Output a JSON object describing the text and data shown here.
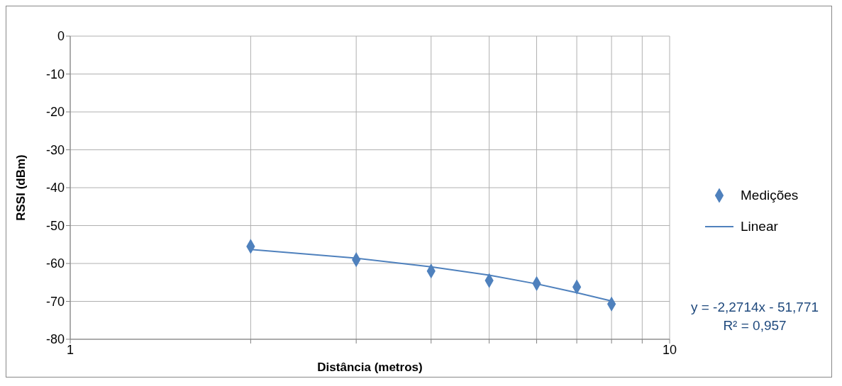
{
  "chart_data": {
    "type": "scatter",
    "xlabel": "Distância (metros)",
    "ylabel": "RSSI (dBm)",
    "log": "x",
    "xlim": [
      1,
      10
    ],
    "xticks": [
      1,
      {
        "value": 2,
        "label": null
      },
      {
        "value": 3,
        "label": null
      },
      {
        "value": 4,
        "label": null
      },
      {
        "value": 5,
        "label": null
      },
      {
        "value": 6,
        "label": null
      },
      {
        "value": 7,
        "label": null
      },
      {
        "value": 8,
        "label": null
      },
      {
        "value": 9,
        "label": null
      },
      10
    ],
    "ylim": [
      -80,
      0
    ],
    "yticks": [
      0,
      -10,
      -20,
      -30,
      -40,
      -50,
      -60,
      -70,
      -80
    ],
    "grid": true,
    "legend": "right",
    "marker": "diamond",
    "x": [
      2,
      3,
      4,
      5,
      6,
      7,
      8
    ],
    "series": [
      {
        "name": "Medições",
        "color": "#4f81bd",
        "values": [
          -55.5,
          -59,
          -62,
          -64.5,
          -65.3,
          -66.2,
          -70.7
        ]
      },
      {
        "name": "Linear",
        "type": "line",
        "color": "#4f81bd",
        "x": [
          2,
          3,
          4,
          5,
          6,
          7,
          8
        ],
        "values": [
          -56.3,
          -58.6,
          -60.9,
          -63.1,
          -65.4,
          -67.7,
          -69.9
        ],
        "marker": "none"
      }
    ],
    "annotations": [
      "y = -2,2714x - 51,771",
      "R² = 0,957"
    ]
  }
}
